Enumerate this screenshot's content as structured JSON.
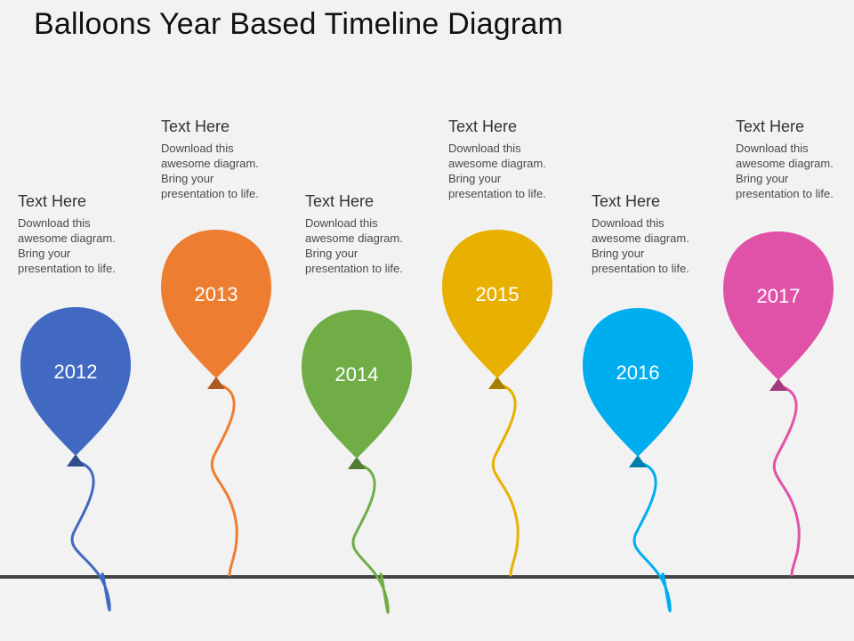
{
  "title": "Balloons Year Based Timeline Diagram",
  "milestones": [
    {
      "year": "2012",
      "heading": "Text Here",
      "body": "Download this awesome diagram. Bring your presentation to life.",
      "color": "#4169c1"
    },
    {
      "year": "2013",
      "heading": "Text Here",
      "body": "Download this awesome diagram. Bring your presentation to life.",
      "color": "#ed7d31"
    },
    {
      "year": "2014",
      "heading": "Text Here",
      "body": "Download this awesome diagram. Bring your presentation to life.",
      "color": "#70ad47"
    },
    {
      "year": "2015",
      "heading": "Text Here",
      "body": "Download this awesome diagram. Bring your presentation to life.",
      "color": "#e8b000"
    },
    {
      "year": "2016",
      "heading": "Text Here",
      "body": "Download this awesome diagram. Bring your presentation to life.",
      "color": "#00adee"
    },
    {
      "year": "2017",
      "heading": "Text Here",
      "body": "Download this awesome diagram. Bring your presentation to life.",
      "color": "#e052a8"
    }
  ],
  "baseline_color": "#444444"
}
